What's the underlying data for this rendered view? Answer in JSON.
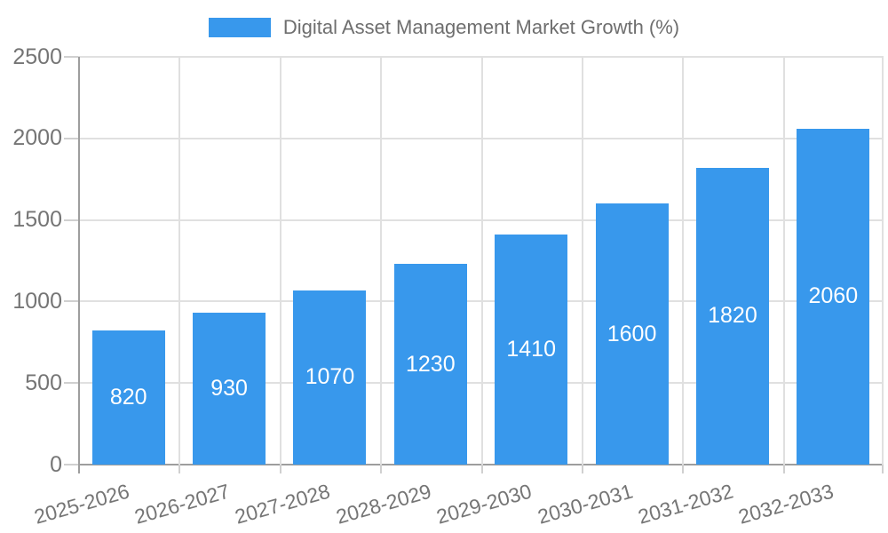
{
  "colors": {
    "bar": "#3898ec",
    "grid": "#e0e0e0",
    "axis": "#9e9e9e",
    "tick": "#d0d0d0",
    "label_text": "#757575",
    "legend_text": "#6e6e6e",
    "bar_value_text": "#ffffff",
    "background": "#ffffff"
  },
  "legend": {
    "swatch_icon": "series-color-swatch",
    "label": "Digital Asset Management Market Growth (%)"
  },
  "chart_data": {
    "type": "bar",
    "title": "Digital Asset Management Market Growth (%)",
    "categories": [
      "2025-2026",
      "2026-2027",
      "2027-2028",
      "2028-2029",
      "2029-2030",
      "2030-2031",
      "2031-2032",
      "2032-2033"
    ],
    "values": [
      820,
      930,
      1070,
      1230,
      1410,
      1600,
      1820,
      2060
    ],
    "xlabel": "",
    "ylabel": "",
    "ylim": [
      0,
      2500
    ],
    "yticks": [
      0,
      500,
      1000,
      1500,
      2000,
      2500
    ],
    "grid": true,
    "legend_position": "top-center",
    "bar_value_labels": "inside-center",
    "x_label_rotation_deg": -16
  }
}
